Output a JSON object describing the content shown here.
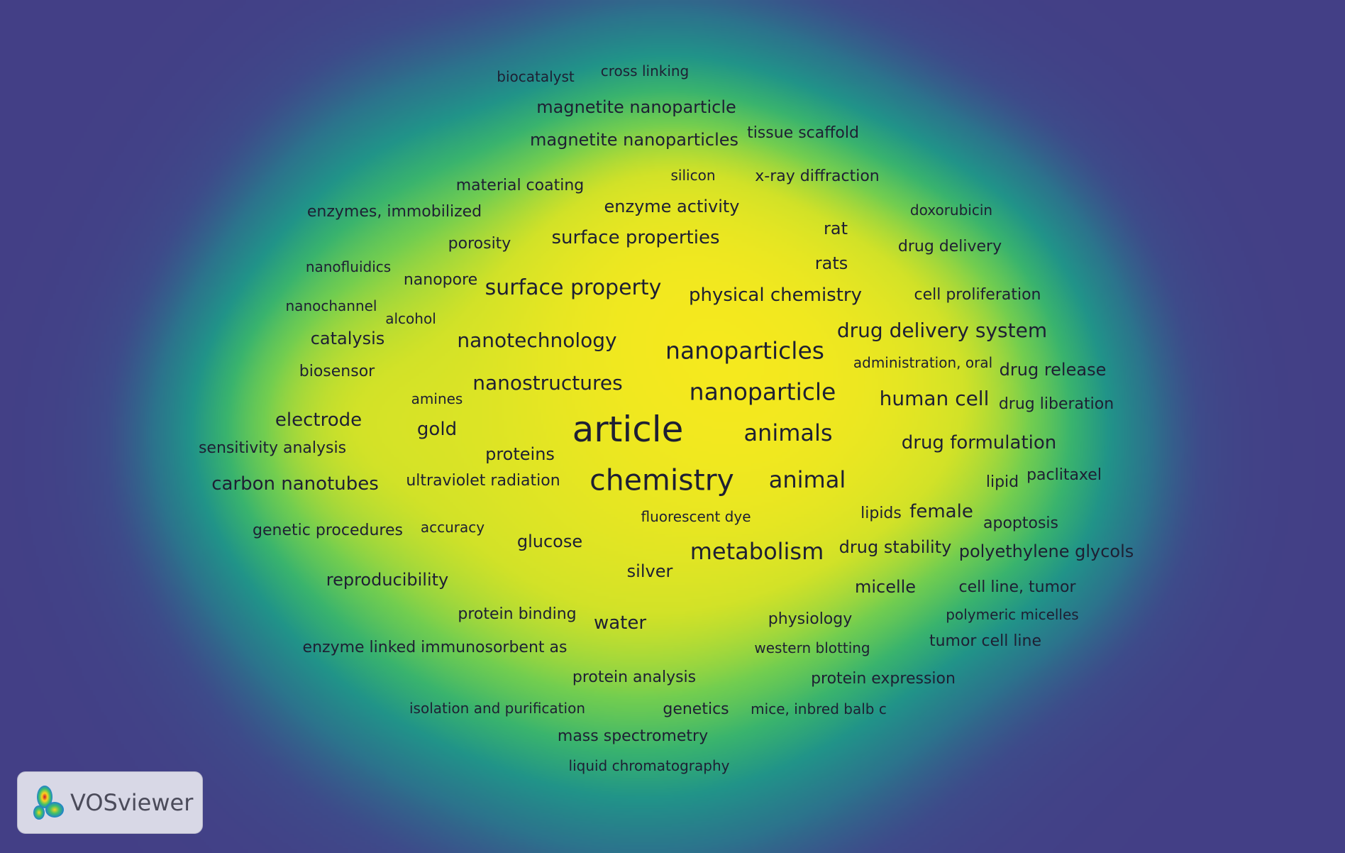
{
  "logo_text": "VOSviewer",
  "colors": {
    "background": "#433f86",
    "density_low": "#2a8a8e",
    "density_mid": "#3fc06a",
    "density_high": "#ffe61c",
    "label": "#1e1f33"
  },
  "terms": [
    {
      "label": "article",
      "weight": 10,
      "size": 50
    },
    {
      "label": "chemistry",
      "weight": 9,
      "size": 41
    },
    {
      "label": "nanoparticles",
      "weight": 7,
      "size": 33
    },
    {
      "label": "nanoparticle",
      "weight": 7,
      "size": 33
    },
    {
      "label": "animals",
      "weight": 6,
      "size": 32
    },
    {
      "label": "animal",
      "weight": 6,
      "size": 32
    },
    {
      "label": "metabolism",
      "weight": 6,
      "size": 32
    },
    {
      "label": "surface property",
      "weight": 5,
      "size": 30
    },
    {
      "label": "nanotechnology",
      "weight": 5,
      "size": 28
    },
    {
      "label": "nanostructures",
      "weight": 5,
      "size": 28
    },
    {
      "label": "drug delivery system",
      "weight": 5,
      "size": 28
    },
    {
      "label": "human cell",
      "weight": 5,
      "size": 28
    },
    {
      "label": "surface properties",
      "weight": 4,
      "size": 26
    },
    {
      "label": "physical chemistry",
      "weight": 4,
      "size": 26
    },
    {
      "label": "carbon nanotubes",
      "weight": 4,
      "size": 26
    },
    {
      "label": "electrode",
      "weight": 4,
      "size": 26
    },
    {
      "label": "gold",
      "weight": 4,
      "size": 26
    },
    {
      "label": "drug formulation",
      "weight": 4,
      "size": 26
    },
    {
      "label": "female",
      "weight": 4,
      "size": 26
    },
    {
      "label": "magnetite nanoparticle",
      "weight": 3,
      "size": 24
    },
    {
      "label": "magnetite nanoparticles",
      "weight": 3,
      "size": 24
    },
    {
      "label": "enzyme activity",
      "weight": 3,
      "size": 24
    },
    {
      "label": "rat",
      "weight": 3,
      "size": 24
    },
    {
      "label": "rats",
      "weight": 3,
      "size": 24
    },
    {
      "label": "catalysis",
      "weight": 3,
      "size": 24
    },
    {
      "label": "proteins",
      "weight": 3,
      "size": 24
    },
    {
      "label": "glucose",
      "weight": 3,
      "size": 24
    },
    {
      "label": "silver",
      "weight": 3,
      "size": 24
    },
    {
      "label": "water",
      "weight": 3,
      "size": 26
    },
    {
      "label": "drug release",
      "weight": 3,
      "size": 24
    },
    {
      "label": "drug stability",
      "weight": 3,
      "size": 24
    },
    {
      "label": "polyethylene glycols",
      "weight": 3,
      "size": 24
    },
    {
      "label": "micelle",
      "weight": 3,
      "size": 24
    },
    {
      "label": "reproducibility",
      "weight": 3,
      "size": 24
    },
    {
      "label": "tissue scaffold",
      "weight": 2,
      "size": 22
    },
    {
      "label": "x-ray diffraction",
      "weight": 2,
      "size": 22
    },
    {
      "label": "material coating",
      "weight": 2,
      "size": 22
    },
    {
      "label": "enzymes, immobilized",
      "weight": 2,
      "size": 22
    },
    {
      "label": "porosity",
      "weight": 2,
      "size": 22
    },
    {
      "label": "nanopore",
      "weight": 2,
      "size": 22
    },
    {
      "label": "biosensor",
      "weight": 2,
      "size": 22
    },
    {
      "label": "drug delivery",
      "weight": 2,
      "size": 22
    },
    {
      "label": "cell proliferation",
      "weight": 2,
      "size": 22
    },
    {
      "label": "drug liberation",
      "weight": 2,
      "size": 22
    },
    {
      "label": "paclitaxel",
      "weight": 2,
      "size": 22
    },
    {
      "label": "apoptosis",
      "weight": 2,
      "size": 22
    },
    {
      "label": "sensitivity analysis",
      "weight": 2,
      "size": 22
    },
    {
      "label": "genetic procedures",
      "weight": 2,
      "size": 22
    },
    {
      "label": "ultraviolet radiation",
      "weight": 2,
      "size": 22
    },
    {
      "label": "protein binding",
      "weight": 2,
      "size": 22
    },
    {
      "label": "physiology",
      "weight": 2,
      "size": 22
    },
    {
      "label": "cell line, tumor",
      "weight": 2,
      "size": 22
    },
    {
      "label": "tumor cell line",
      "weight": 2,
      "size": 22
    },
    {
      "label": "enzyme linked immunosorbent as",
      "weight": 2,
      "size": 22
    },
    {
      "label": "protein analysis",
      "weight": 2,
      "size": 22
    },
    {
      "label": "protein expression",
      "weight": 2,
      "size": 22
    },
    {
      "label": "genetics",
      "weight": 2,
      "size": 22
    },
    {
      "label": "mass spectrometry",
      "weight": 2,
      "size": 22
    },
    {
      "label": "lipids",
      "weight": 2,
      "size": 22
    },
    {
      "label": "lipid",
      "weight": 2,
      "size": 22
    },
    {
      "label": "biocatalyst",
      "weight": 1,
      "size": 20
    },
    {
      "label": "cross linking",
      "weight": 1,
      "size": 20
    },
    {
      "label": "silicon",
      "weight": 1,
      "size": 20
    },
    {
      "label": "doxorubicin",
      "weight": 1,
      "size": 20
    },
    {
      "label": "nanofluidics",
      "weight": 1,
      "size": 20
    },
    {
      "label": "nanochannel",
      "weight": 1,
      "size": 20
    },
    {
      "label": "alcohol",
      "weight": 1,
      "size": 20
    },
    {
      "label": "administration, oral",
      "weight": 1,
      "size": 20
    },
    {
      "label": "amines",
      "weight": 1,
      "size": 20
    },
    {
      "label": "accuracy",
      "weight": 1,
      "size": 20
    },
    {
      "label": "fluorescent dye",
      "weight": 1,
      "size": 20
    },
    {
      "label": "polymeric micelles",
      "weight": 1,
      "size": 20
    },
    {
      "label": "western blotting",
      "weight": 1,
      "size": 20
    },
    {
      "label": "isolation and purification",
      "weight": 1,
      "size": 20
    },
    {
      "label": "mice, inbred balb c",
      "weight": 1,
      "size": 20
    },
    {
      "label": "liquid chromatography",
      "weight": 1,
      "size": 20
    }
  ]
}
